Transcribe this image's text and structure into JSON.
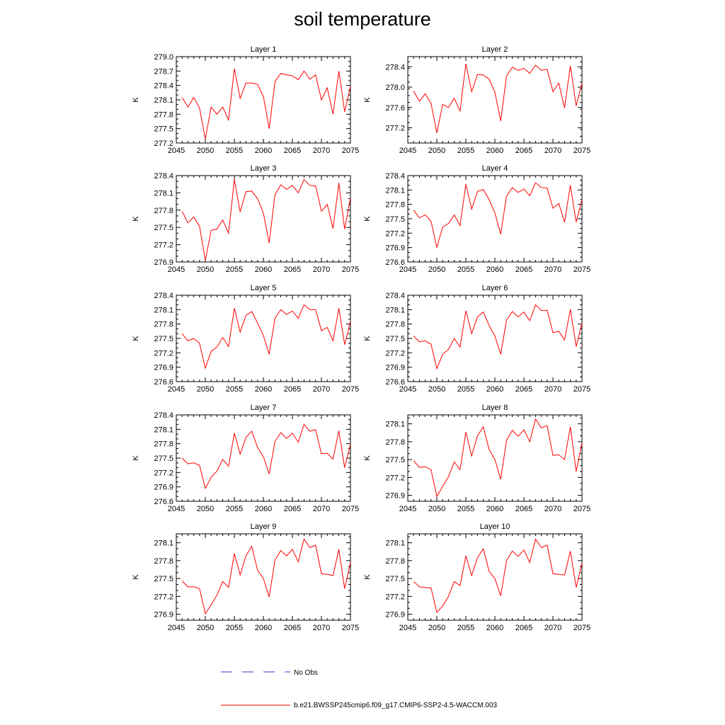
{
  "title": "soil temperature",
  "colors": {
    "model_line": "#ff0000",
    "obs_line": "#3333cc"
  },
  "legend": {
    "obs_label": "No Obs",
    "model_label": "b.e21.BWSSP245cmip6.f09_g17.CMIP6-SSP2-4.5-WACCM.003"
  },
  "chart_data": [
    {
      "type": "line",
      "title": "Layer 1",
      "ylabel": "K",
      "xlim": [
        2045,
        2075
      ],
      "ylim": [
        277.2,
        279.0
      ],
      "xticks": [
        2045,
        2050,
        2055,
        2060,
        2065,
        2070,
        2075
      ],
      "yticks": [
        "277.2",
        "277.5",
        "277.8",
        "278.1",
        "278.4",
        "278.7",
        "279.0"
      ],
      "x": [
        2046,
        2047,
        2048,
        2049,
        2050,
        2051,
        2052,
        2053,
        2054,
        2055,
        2056,
        2057,
        2058,
        2059,
        2060,
        2061,
        2062,
        2063,
        2064,
        2065,
        2066,
        2067,
        2068,
        2069,
        2070,
        2071,
        2072,
        2073,
        2074,
        2075
      ],
      "values": [
        278.15,
        277.95,
        278.15,
        277.93,
        277.28,
        277.95,
        277.8,
        277.95,
        277.68,
        278.75,
        278.13,
        278.45,
        278.45,
        278.42,
        278.17,
        277.5,
        278.48,
        278.65,
        278.62,
        278.6,
        278.52,
        278.7,
        278.53,
        278.62,
        278.1,
        278.35,
        277.8,
        278.7,
        277.85,
        278.38
      ]
    },
    {
      "type": "line",
      "title": "Layer 2",
      "ylabel": "K",
      "xlim": [
        2045,
        2075
      ],
      "ylim": [
        276.9,
        278.6
      ],
      "xticks": [
        2045,
        2050,
        2055,
        2060,
        2065,
        2070,
        2075
      ],
      "yticks": [
        "277.2",
        "277.6",
        "278.0",
        "278.4"
      ],
      "x": [
        2046,
        2047,
        2048,
        2049,
        2050,
        2051,
        2052,
        2053,
        2054,
        2055,
        2056,
        2057,
        2058,
        2059,
        2060,
        2061,
        2062,
        2063,
        2064,
        2065,
        2066,
        2067,
        2068,
        2069,
        2070,
        2071,
        2072,
        2073,
        2074,
        2075
      ],
      "values": [
        277.92,
        277.72,
        277.87,
        277.68,
        277.1,
        277.66,
        277.6,
        277.78,
        277.53,
        278.46,
        277.91,
        278.25,
        278.24,
        278.16,
        277.9,
        277.33,
        278.22,
        278.39,
        278.33,
        278.37,
        278.27,
        278.43,
        278.33,
        278.35,
        277.91,
        278.08,
        277.59,
        278.42,
        277.63,
        278.08
      ]
    },
    {
      "type": "line",
      "title": "Layer 3",
      "ylabel": "K",
      "xlim": [
        2045,
        2075
      ],
      "ylim": [
        276.9,
        278.4
      ],
      "xticks": [
        2045,
        2050,
        2055,
        2060,
        2065,
        2070,
        2075
      ],
      "yticks": [
        "276.9",
        "277.2",
        "277.5",
        "277.8",
        "278.1",
        "278.4"
      ],
      "x": [
        2046,
        2047,
        2048,
        2049,
        2050,
        2051,
        2052,
        2053,
        2054,
        2055,
        2056,
        2057,
        2058,
        2059,
        2060,
        2061,
        2062,
        2063,
        2064,
        2065,
        2066,
        2067,
        2068,
        2069,
        2070,
        2071,
        2072,
        2073,
        2074,
        2075
      ],
      "values": [
        277.78,
        277.58,
        277.68,
        277.52,
        276.93,
        277.45,
        277.47,
        277.63,
        277.4,
        278.33,
        277.77,
        278.12,
        278.13,
        278.0,
        277.75,
        277.23,
        278.07,
        278.24,
        278.16,
        278.23,
        278.1,
        278.33,
        278.23,
        278.22,
        277.78,
        277.9,
        277.48,
        278.27,
        277.47,
        278.01
      ]
    },
    {
      "type": "line",
      "title": "Layer 4",
      "ylabel": "K",
      "xlim": [
        2045,
        2075
      ],
      "ylim": [
        276.6,
        278.4
      ],
      "xticks": [
        2045,
        2050,
        2055,
        2060,
        2065,
        2070,
        2075
      ],
      "yticks": [
        "276.6",
        "276.9",
        "277.2",
        "277.5",
        "277.8",
        "278.1",
        "278.4"
      ],
      "x": [
        2046,
        2047,
        2048,
        2049,
        2050,
        2051,
        2052,
        2053,
        2054,
        2055,
        2056,
        2057,
        2058,
        2059,
        2060,
        2061,
        2062,
        2063,
        2064,
        2065,
        2066,
        2067,
        2068,
        2069,
        2070,
        2071,
        2072,
        2073,
        2074,
        2075
      ],
      "values": [
        277.68,
        277.52,
        277.58,
        277.45,
        276.9,
        277.33,
        277.4,
        277.58,
        277.36,
        278.22,
        277.7,
        278.07,
        278.11,
        277.9,
        277.62,
        277.18,
        277.97,
        278.15,
        278.05,
        278.12,
        277.98,
        278.25,
        278.15,
        278.14,
        277.72,
        277.82,
        277.43,
        278.2,
        277.43,
        277.9
      ]
    },
    {
      "type": "line",
      "title": "Layer 5",
      "ylabel": "K",
      "xlim": [
        2045,
        2075
      ],
      "ylim": [
        276.6,
        278.4
      ],
      "xticks": [
        2045,
        2050,
        2055,
        2060,
        2065,
        2070,
        2075
      ],
      "yticks": [
        "276.6",
        "276.9",
        "277.2",
        "277.5",
        "277.8",
        "278.1",
        "278.4"
      ],
      "x": [
        2046,
        2047,
        2048,
        2049,
        2050,
        2051,
        2052,
        2053,
        2054,
        2055,
        2056,
        2057,
        2058,
        2059,
        2060,
        2061,
        2062,
        2063,
        2064,
        2065,
        2066,
        2067,
        2068,
        2069,
        2070,
        2071,
        2072,
        2073,
        2074,
        2075
      ],
      "values": [
        277.6,
        277.45,
        277.5,
        277.4,
        276.88,
        277.23,
        277.32,
        277.52,
        277.33,
        278.13,
        277.63,
        277.98,
        278.06,
        277.82,
        277.56,
        277.17,
        277.92,
        278.1,
        278.0,
        278.07,
        277.92,
        278.2,
        278.1,
        278.1,
        277.66,
        277.73,
        277.45,
        278.13,
        277.37,
        277.86
      ]
    },
    {
      "type": "line",
      "title": "Layer 6",
      "ylabel": "K",
      "xlim": [
        2045,
        2075
      ],
      "ylim": [
        276.6,
        278.4
      ],
      "xticks": [
        2045,
        2050,
        2055,
        2060,
        2065,
        2070,
        2075
      ],
      "yticks": [
        "276.6",
        "276.9",
        "277.2",
        "277.5",
        "277.8",
        "278.1",
        "278.4"
      ],
      "x": [
        2046,
        2047,
        2048,
        2049,
        2050,
        2051,
        2052,
        2053,
        2054,
        2055,
        2056,
        2057,
        2058,
        2059,
        2060,
        2061,
        2062,
        2063,
        2064,
        2065,
        2066,
        2067,
        2068,
        2069,
        2070,
        2071,
        2072,
        2073,
        2074,
        2075
      ],
      "values": [
        277.55,
        277.43,
        277.45,
        277.38,
        276.87,
        277.17,
        277.27,
        277.5,
        277.32,
        278.08,
        277.6,
        277.95,
        278.05,
        277.77,
        277.55,
        277.17,
        277.88,
        278.06,
        277.95,
        278.05,
        277.87,
        278.2,
        278.08,
        278.09,
        277.62,
        277.65,
        277.47,
        278.11,
        277.33,
        277.82
      ]
    },
    {
      "type": "line",
      "title": "Layer 7",
      "ylabel": "K",
      "xlim": [
        2045,
        2075
      ],
      "ylim": [
        276.6,
        278.4
      ],
      "xticks": [
        2045,
        2050,
        2055,
        2060,
        2065,
        2070,
        2075
      ],
      "yticks": [
        "276.6",
        "276.9",
        "277.2",
        "277.5",
        "277.8",
        "278.1",
        "278.4"
      ],
      "x": [
        2046,
        2047,
        2048,
        2049,
        2050,
        2051,
        2052,
        2053,
        2054,
        2055,
        2056,
        2057,
        2058,
        2059,
        2060,
        2061,
        2062,
        2063,
        2064,
        2065,
        2066,
        2067,
        2068,
        2069,
        2070,
        2071,
        2072,
        2073,
        2074,
        2075
      ],
      "values": [
        277.5,
        277.38,
        277.4,
        277.35,
        276.87,
        277.1,
        277.23,
        277.47,
        277.33,
        278.02,
        277.58,
        277.93,
        278.06,
        277.72,
        277.53,
        277.17,
        277.85,
        278.03,
        277.91,
        278.02,
        277.83,
        278.2,
        278.06,
        278.09,
        277.59,
        277.6,
        277.48,
        278.07,
        277.3,
        277.79
      ]
    },
    {
      "type": "line",
      "title": "Layer 8",
      "ylabel": "K",
      "xlim": [
        2045,
        2075
      ],
      "ylim": [
        276.8,
        278.25
      ],
      "xticks": [
        2045,
        2050,
        2055,
        2060,
        2065,
        2070,
        2075
      ],
      "yticks": [
        "276.9",
        "277.2",
        "277.5",
        "277.8",
        "278.1"
      ],
      "x": [
        2046,
        2047,
        2048,
        2049,
        2050,
        2051,
        2052,
        2053,
        2054,
        2055,
        2056,
        2057,
        2058,
        2059,
        2060,
        2061,
        2062,
        2063,
        2064,
        2065,
        2066,
        2067,
        2068,
        2069,
        2070,
        2071,
        2072,
        2073,
        2074,
        2075
      ],
      "values": [
        277.48,
        277.37,
        277.38,
        277.33,
        276.88,
        277.05,
        277.21,
        277.46,
        277.33,
        277.96,
        277.56,
        277.9,
        278.05,
        277.67,
        277.5,
        277.17,
        277.82,
        277.99,
        277.89,
        278.0,
        277.8,
        278.18,
        278.03,
        278.07,
        277.57,
        277.58,
        277.5,
        278.05,
        277.3,
        277.78
      ]
    },
    {
      "type": "line",
      "title": "Layer 9",
      "ylabel": "K",
      "xlim": [
        2045,
        2075
      ],
      "ylim": [
        276.8,
        278.25
      ],
      "xticks": [
        2045,
        2050,
        2055,
        2060,
        2065,
        2070,
        2075
      ],
      "yticks": [
        "276.9",
        "277.2",
        "277.5",
        "277.8",
        "278.1"
      ],
      "x": [
        2046,
        2047,
        2048,
        2049,
        2050,
        2051,
        2052,
        2053,
        2054,
        2055,
        2056,
        2057,
        2058,
        2059,
        2060,
        2061,
        2062,
        2063,
        2064,
        2065,
        2066,
        2067,
        2068,
        2069,
        2070,
        2071,
        2072,
        2073,
        2074,
        2075
      ],
      "values": [
        277.46,
        277.36,
        277.36,
        277.33,
        276.91,
        277.06,
        277.22,
        277.45,
        277.35,
        277.92,
        277.56,
        277.88,
        278.04,
        277.64,
        277.5,
        277.19,
        277.81,
        277.97,
        277.88,
        277.99,
        277.78,
        278.16,
        278.02,
        278.06,
        277.58,
        277.57,
        277.55,
        277.99,
        277.33,
        277.77
      ]
    },
    {
      "type": "line",
      "title": "Layer 10",
      "ylabel": "K",
      "xlim": [
        2045,
        2075
      ],
      "ylim": [
        276.8,
        278.25
      ],
      "xticks": [
        2045,
        2050,
        2055,
        2060,
        2065,
        2070,
        2075
      ],
      "yticks": [
        "276.9",
        "277.2",
        "277.5",
        "277.8",
        "278.1"
      ],
      "x": [
        2046,
        2047,
        2048,
        2049,
        2050,
        2051,
        2052,
        2053,
        2054,
        2055,
        2056,
        2057,
        2058,
        2059,
        2060,
        2061,
        2062,
        2063,
        2064,
        2065,
        2066,
        2067,
        2068,
        2069,
        2070,
        2071,
        2072,
        2073,
        2074,
        2075
      ],
      "values": [
        277.45,
        277.36,
        277.35,
        277.34,
        276.93,
        277.04,
        277.2,
        277.45,
        277.38,
        277.88,
        277.55,
        277.85,
        278.0,
        277.62,
        277.5,
        277.21,
        277.8,
        277.96,
        277.87,
        277.98,
        277.77,
        278.16,
        278.02,
        278.06,
        277.58,
        277.57,
        277.56,
        277.96,
        277.35,
        277.76
      ]
    }
  ]
}
